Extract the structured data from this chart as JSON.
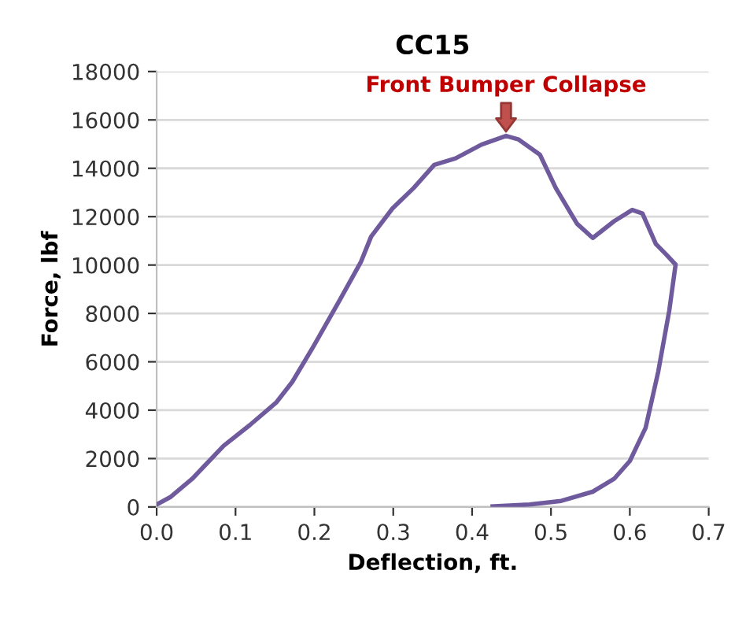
{
  "chart_data": {
    "type": "line",
    "title": "CC15",
    "xlabel": "Deflection, ft.",
    "ylabel": "Force, lbf",
    "xlim": [
      0,
      0.7
    ],
    "xticks": [
      {
        "value": 0,
        "label": "0.0"
      },
      0.1,
      0.2,
      0.3,
      0.4,
      0.5,
      0.6,
      0.7
    ],
    "ylim": [
      0,
      18000
    ],
    "yticks": [
      0,
      2000,
      4000,
      6000,
      8000,
      10000,
      12000,
      14000,
      16000,
      18000
    ],
    "grid": "y",
    "marker": "none",
    "line_style": "solid",
    "annotations": [
      {
        "text": "Front Bumper Collapse",
        "x": 0.443,
        "y": 15340
      }
    ],
    "series": [
      {
        "color": "#6f5a9e",
        "x": [
          0,
          0.018,
          0.045,
          0.085,
          0.118,
          0.152,
          0.172,
          0.199,
          0.232,
          0.259,
          0.272,
          0.299,
          0.326,
          0.352,
          0.379,
          0.412,
          0.443,
          0.459,
          0.486,
          0.506,
          0.533,
          0.553,
          0.58,
          0.603,
          0.616,
          0.633,
          0.646,
          0.658,
          0.65,
          0.636,
          0.62,
          0.6,
          0.58,
          0.553,
          0.513,
          0.473,
          0.426
        ],
        "values": [
          100,
          420,
          1160,
          2530,
          3380,
          4330,
          5170,
          6650,
          8540,
          10130,
          11180,
          12340,
          13190,
          14140,
          14410,
          14980,
          15340,
          15190,
          14560,
          13190,
          11710,
          11120,
          11810,
          12280,
          12130,
          10870,
          10440,
          10020,
          8120,
          5590,
          3270,
          1900,
          1160,
          630,
          250,
          100,
          20
        ]
      }
    ]
  }
}
